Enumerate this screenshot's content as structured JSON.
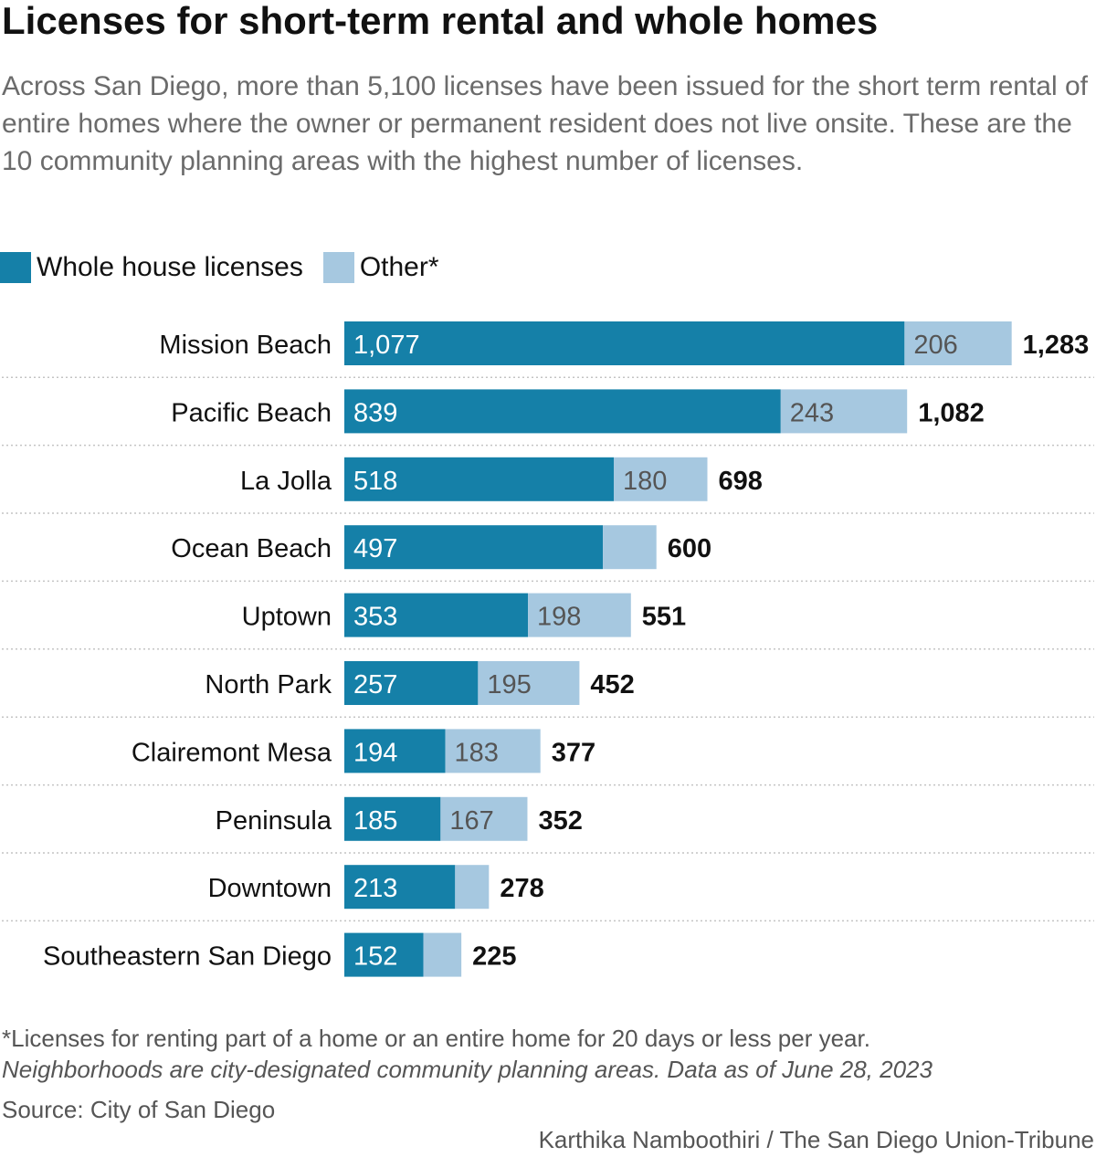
{
  "header": {
    "title": "Licenses for short-term rental and whole homes",
    "subtitle": "Across San Diego, more than 5,100 licenses have been issued for the short term rental of entire homes where the owner or permanent resident does not live onsite. These are the 10 community planning areas with the highest number of licenses."
  },
  "legend": {
    "items": [
      {
        "label": "Whole house licenses",
        "color": "#1580a8"
      },
      {
        "label": "Other*",
        "color": "#a6c8e0"
      }
    ]
  },
  "chart_data": {
    "type": "bar",
    "orientation": "horizontal",
    "stacked": true,
    "categories": [
      "Mission Beach",
      "Pacific Beach",
      "La Jolla",
      "Ocean Beach",
      "Uptown",
      "North Park",
      "Clairemont Mesa",
      "Peninsula",
      "Downtown",
      "Southeastern San Diego"
    ],
    "series": [
      {
        "name": "Whole house licenses",
        "color": "#1580a8",
        "values": [
          1077,
          839,
          518,
          497,
          353,
          257,
          194,
          185,
          213,
          152
        ],
        "labels": [
          "1,077",
          "839",
          "518",
          "497",
          "353",
          "257",
          "194",
          "185",
          "213",
          "152"
        ]
      },
      {
        "name": "Other*",
        "color": "#a6c8e0",
        "values": [
          206,
          243,
          180,
          103,
          198,
          195,
          183,
          167,
          65,
          73
        ],
        "labels": [
          "206",
          "243",
          "180",
          "",
          "198",
          "195",
          "183",
          "167",
          "",
          ""
        ]
      }
    ],
    "totals": [
      1283,
      1082,
      698,
      600,
      551,
      452,
      377,
      352,
      278,
      225
    ],
    "total_labels": [
      "1,283",
      "1,082",
      "698",
      "600",
      "551",
      "452",
      "377",
      "352",
      "278",
      "225"
    ],
    "grid": false,
    "legend_position": "top-left"
  },
  "footer": {
    "footnote": "*Licenses for renting part of a home or an entire home for 20 days or less per year.",
    "note": "Neighborhoods are city-designated community planning areas. Data as of June 28, 2023",
    "source": "Source: City of San Diego",
    "credit": "Karthika Namboothiri / The San Diego Union-Tribune"
  }
}
